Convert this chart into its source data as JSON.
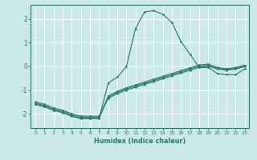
{
  "xlabel": "Humidex (Indice chaleur)",
  "bg_color": "#cce8e8",
  "grid_color": "#ffffff",
  "line_color": "#2a7a6a",
  "xlim": [
    -0.5,
    23.5
  ],
  "ylim": [
    -2.6,
    2.6
  ],
  "xticks": [
    0,
    1,
    2,
    3,
    4,
    5,
    6,
    7,
    8,
    9,
    10,
    11,
    12,
    13,
    14,
    15,
    16,
    17,
    18,
    19,
    20,
    21,
    22,
    23
  ],
  "yticks": [
    -2,
    -1,
    0,
    1,
    2
  ],
  "curves": [
    {
      "x": [
        0,
        1,
        2,
        3,
        4,
        5,
        6,
        7,
        8,
        9,
        10,
        11,
        12,
        13,
        14,
        15,
        16,
        17,
        18,
        19,
        20,
        21,
        22,
        23
      ],
      "y": [
        -1.6,
        -1.7,
        -1.85,
        -1.95,
        -2.1,
        -2.2,
        -2.2,
        -2.2,
        -0.7,
        -0.45,
        0.0,
        1.6,
        2.3,
        2.35,
        2.2,
        1.85,
        1.05,
        0.5,
        -0.05,
        -0.05,
        -0.3,
        -0.35,
        -0.35,
        -0.1
      ]
    },
    {
      "x": [
        0,
        1,
        2,
        3,
        4,
        5,
        6,
        7,
        8,
        9,
        10,
        11,
        12,
        13,
        14,
        15,
        16,
        17,
        18,
        19,
        20,
        21,
        22,
        23
      ],
      "y": [
        -1.6,
        -1.7,
        -1.85,
        -1.95,
        -2.1,
        -2.2,
        -2.2,
        -2.2,
        -1.25,
        -1.05,
        -0.9,
        -0.78,
        -0.66,
        -0.54,
        -0.42,
        -0.3,
        -0.18,
        -0.06,
        0.06,
        0.1,
        -0.05,
        -0.1,
        -0.05,
        0.05
      ]
    },
    {
      "x": [
        0,
        1,
        2,
        3,
        4,
        5,
        6,
        7,
        8,
        9,
        10,
        11,
        12,
        13,
        14,
        15,
        16,
        17,
        18,
        19,
        20,
        21,
        22,
        23
      ],
      "y": [
        -1.55,
        -1.65,
        -1.8,
        -1.9,
        -2.05,
        -2.15,
        -2.15,
        -2.15,
        -1.3,
        -1.1,
        -0.95,
        -0.83,
        -0.71,
        -0.59,
        -0.47,
        -0.35,
        -0.23,
        -0.11,
        0.01,
        0.05,
        -0.08,
        -0.13,
        -0.08,
        0.02
      ]
    },
    {
      "x": [
        0,
        1,
        2,
        3,
        4,
        5,
        6,
        7,
        8,
        9,
        10,
        11,
        12,
        13,
        14,
        15,
        16,
        17,
        18,
        19,
        20,
        21,
        22,
        23
      ],
      "y": [
        -1.5,
        -1.6,
        -1.75,
        -1.85,
        -2.0,
        -2.1,
        -2.1,
        -2.1,
        -1.35,
        -1.15,
        -1.0,
        -0.88,
        -0.76,
        -0.64,
        -0.52,
        -0.4,
        -0.28,
        -0.16,
        -0.04,
        0.0,
        -0.11,
        -0.16,
        -0.11,
        -0.01
      ]
    }
  ]
}
